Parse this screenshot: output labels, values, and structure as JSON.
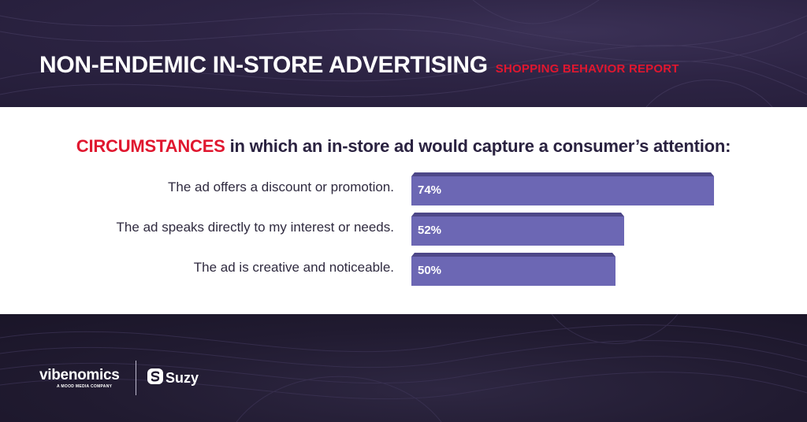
{
  "header": {
    "title": "NON-ENDEMIC IN-STORE ADVERTISING",
    "subtitle": "SHOPPING BEHAVIOR REPORT"
  },
  "question": {
    "highlight": "CIRCUMSTANCES",
    "rest": " in which an in-store ad would capture a consumer’s attention:"
  },
  "chart_data": {
    "type": "bar",
    "orientation": "horizontal",
    "title": "CIRCUMSTANCES in which an in-store ad would capture a consumer’s attention:",
    "categories": [
      "The ad offers a discount or promotion.",
      "The ad speaks directly to my interest or needs.",
      "The ad is creative and noticeable."
    ],
    "values": [
      74,
      52,
      50
    ],
    "value_labels": [
      "74%",
      "52%",
      "50%"
    ],
    "unit": "%",
    "xlim": [
      0,
      74
    ],
    "grid": false,
    "legend": "none"
  },
  "colors": {
    "accent": "#e0172f",
    "bar": "#6c67b4",
    "bar_top": "#4d4788",
    "dark": "#2a2240"
  },
  "footer": {
    "logo_vibenomics": "vibenomics",
    "logo_vibenomics_tagline": "A MOOD MEDIA COMPANY",
    "logo_suzy": "Suzy",
    "suzy_icon": "suzy-s-icon"
  }
}
